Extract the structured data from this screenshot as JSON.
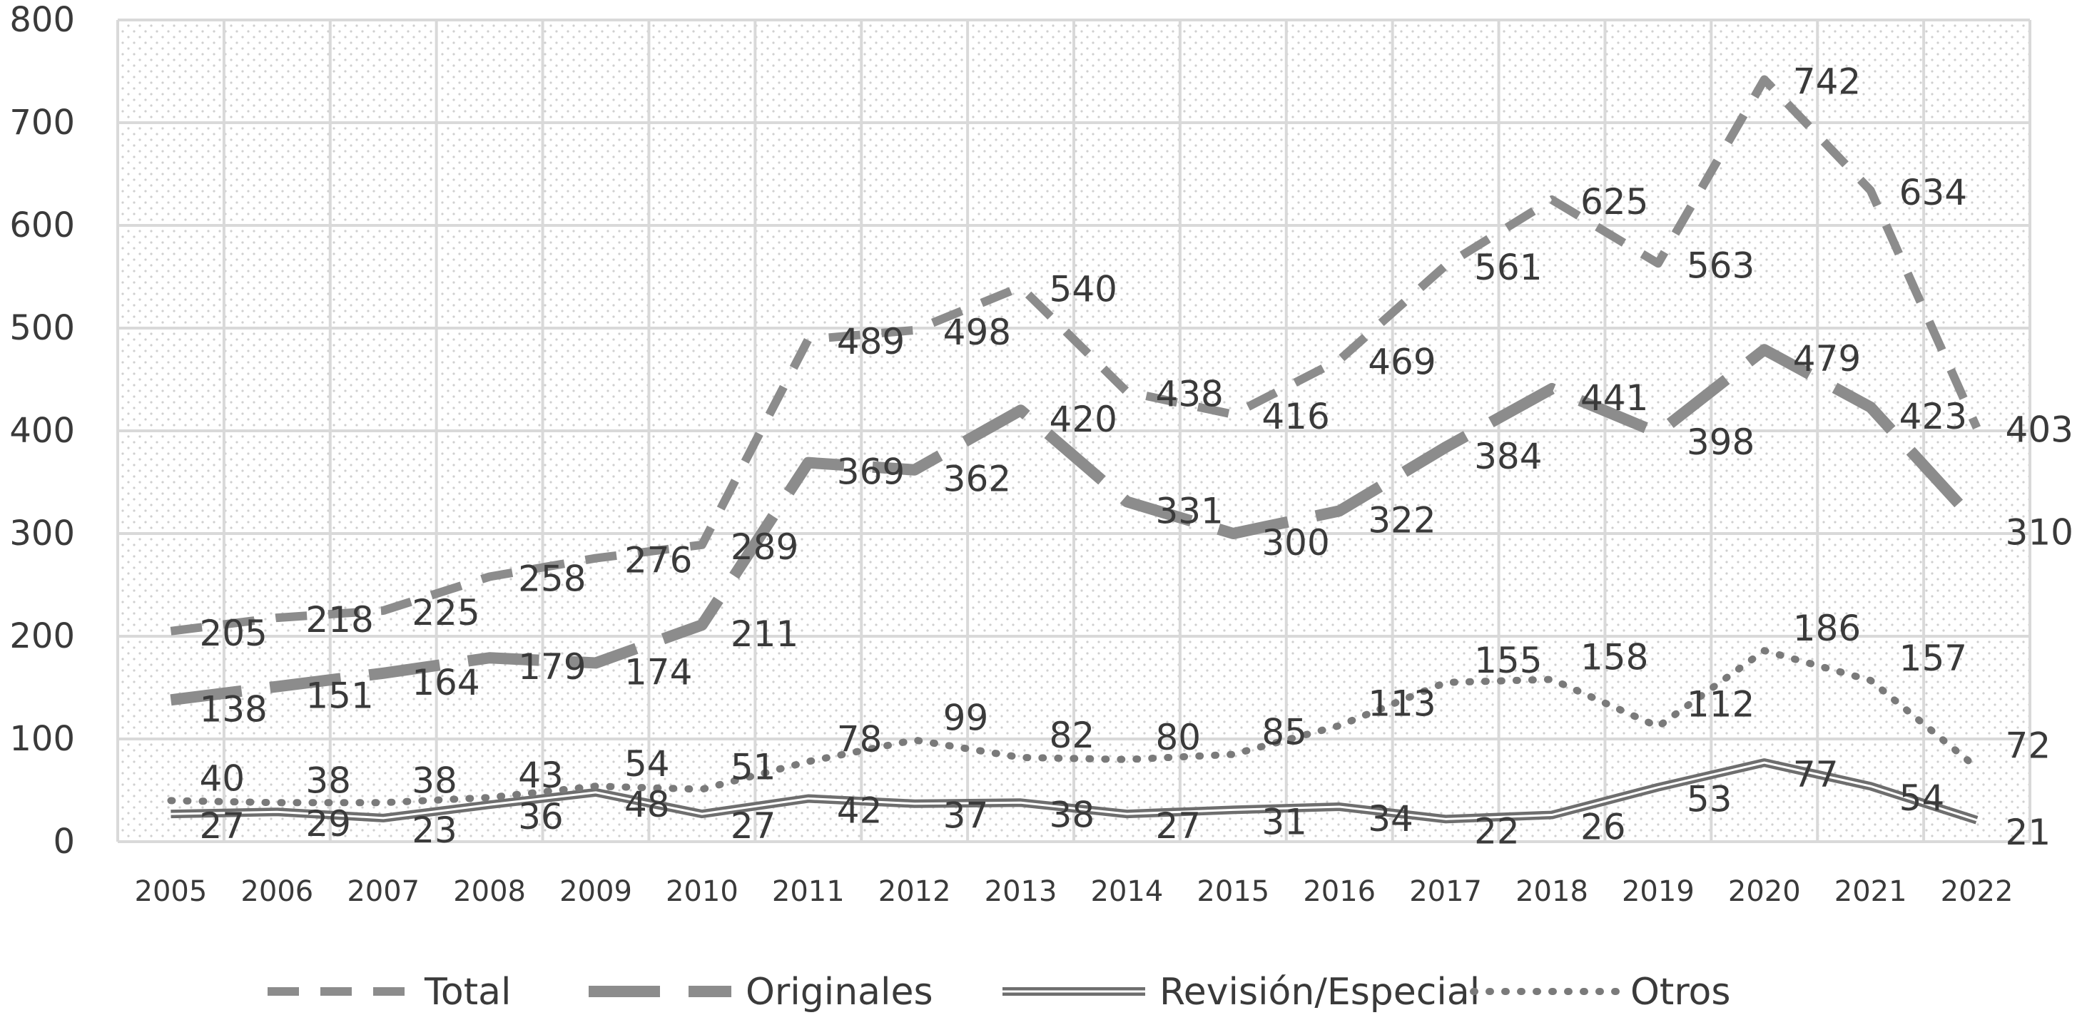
{
  "chart_data": {
    "type": "line",
    "title": "",
    "xlabel": "",
    "ylabel": "",
    "ylim": [
      0,
      800
    ],
    "y_ticks": [
      "0",
      "100",
      "200",
      "300",
      "400",
      "500",
      "600",
      "700",
      "800"
    ],
    "categories": [
      "2005",
      "2006",
      "2007",
      "2008",
      "2009",
      "2010",
      "2011",
      "2012",
      "2013",
      "2014",
      "2015",
      "2016",
      "2017",
      "2018",
      "2019",
      "2020",
      "2021",
      "2022"
    ],
    "grid": true,
    "legend_position": "bottom",
    "series": [
      {
        "name": "Total",
        "style": "dashed",
        "color": "#8c8c8c",
        "values": [
          205,
          218,
          225,
          258,
          276,
          289,
          489,
          498,
          540,
          438,
          416,
          469,
          561,
          625,
          563,
          742,
          634,
          403
        ]
      },
      {
        "name": "Originales",
        "style": "long-dashed",
        "color": "#8c8c8c",
        "values": [
          138,
          151,
          164,
          179,
          174,
          211,
          369,
          362,
          420,
          331,
          300,
          322,
          384,
          441,
          398,
          479,
          423,
          310
        ]
      },
      {
        "name": "Revisión/Especial",
        "style": "double-solid",
        "color": "#6e6e6e",
        "values": [
          27,
          29,
          23,
          36,
          48,
          27,
          42,
          37,
          38,
          27,
          31,
          34,
          22,
          26,
          53,
          77,
          54,
          21
        ]
      },
      {
        "name": "Otros",
        "style": "dotted",
        "color": "#7a7a7a",
        "values": [
          40,
          38,
          38,
          43,
          54,
          51,
          78,
          99,
          82,
          80,
          85,
          113,
          155,
          158,
          112,
          186,
          157,
          72
        ]
      }
    ]
  }
}
